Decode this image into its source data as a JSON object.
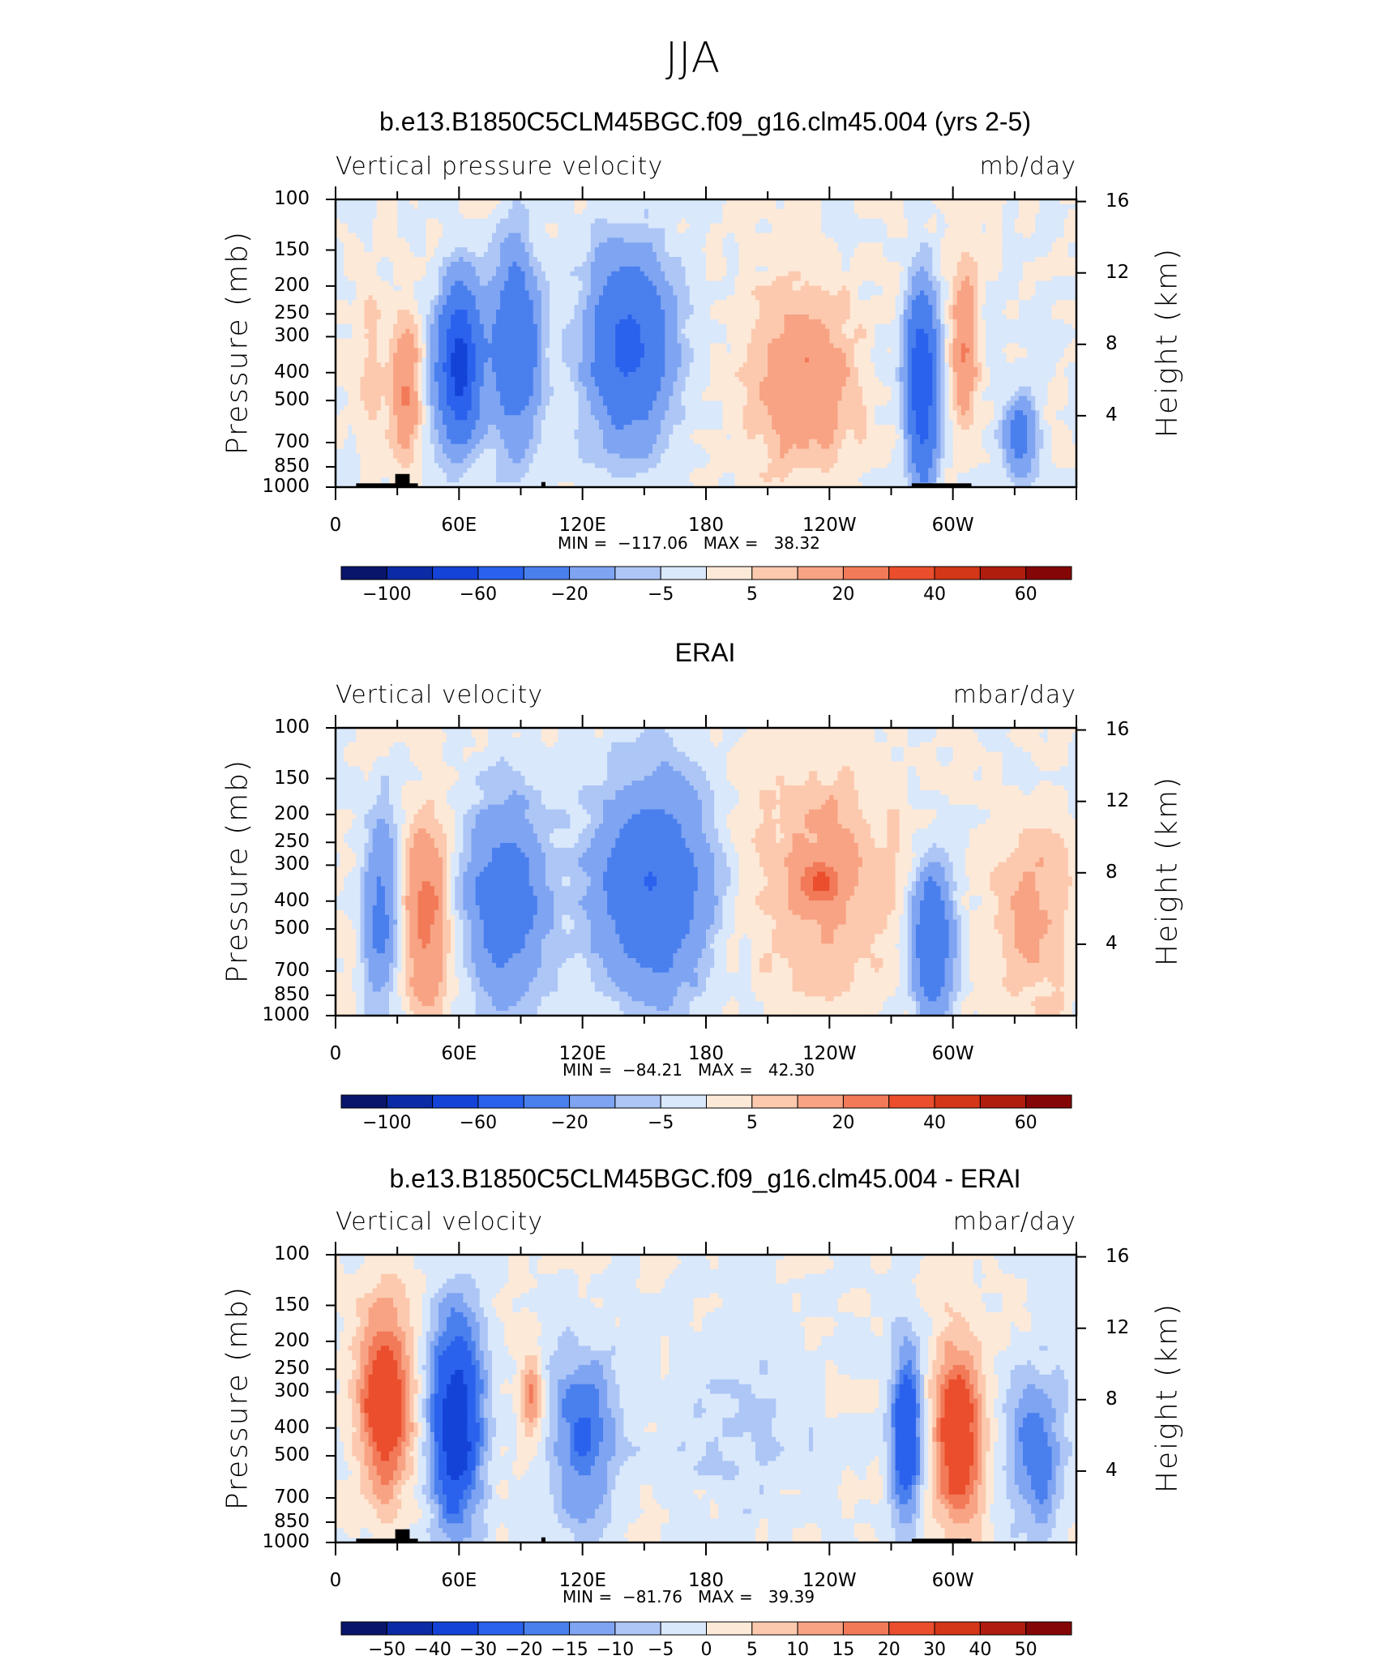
{
  "figure": {
    "title": "JJA"
  },
  "y_ticks": [
    "100",
    "150",
    "200",
    "250",
    "300",
    "400",
    "500",
    "700",
    "850",
    "1000"
  ],
  "y_tick_values": [
    100,
    150,
    200,
    250,
    300,
    400,
    500,
    700,
    850,
    1000
  ],
  "height_ticks": [
    "16",
    "12",
    "8",
    "4"
  ],
  "height_tick_values": [
    16,
    12,
    8,
    4
  ],
  "x_ticks": [
    "0",
    "60E",
    "120E",
    "180",
    "120W",
    "60W"
  ],
  "x_tick_values": [
    0,
    60,
    120,
    180,
    240,
    300
  ],
  "y_axis_label": "Pressure (mb)",
  "y2_axis_label": "Height (km)",
  "colors": {
    "abs_levels": [
      "#08156b",
      "#0a2aa6",
      "#1443d8",
      "#2a62ee",
      "#4a7fee",
      "#7ea4f2",
      "#adc6f6",
      "#d9e8fb",
      "#fde9d8",
      "#fcc9ae",
      "#f8a384",
      "#f27a58",
      "#ea4e2c",
      "#d43618",
      "#b01d0f",
      "#850606"
    ],
    "diff_levels": [
      "#08156b",
      "#0a2aa6",
      "#1443d8",
      "#2a62ee",
      "#4a7fee",
      "#7ea4f2",
      "#adc6f6",
      "#d9e8fb",
      "#fde9d8",
      "#fcc9ae",
      "#f8a384",
      "#f27a58",
      "#ea4e2c",
      "#d43618",
      "#b01d0f",
      "#850606"
    ],
    "land": "#000000"
  },
  "panels": [
    {
      "title": "b.e13.B1850C5CLM45BGC.f09_g16.clm45.004 (yrs 2-5)",
      "variable": "Vertical pressure velocity",
      "units": "mb/day",
      "min_max": "MIN =  −117.06   MAX =   38.32",
      "colorbar_labels": [
        "−100",
        "−60",
        "−20",
        "−5",
        "5",
        "20",
        "40",
        "60"
      ],
      "colorbar_label_boxes": [
        1,
        3,
        5,
        7,
        9,
        11,
        13,
        15
      ]
    },
    {
      "title": "ERAI",
      "variable": "Vertical velocity",
      "units": "mbar/day",
      "min_max": "MIN =  −84.21   MAX =   42.30",
      "colorbar_labels": [
        "−100",
        "−60",
        "−20",
        "−5",
        "5",
        "20",
        "40",
        "60"
      ],
      "colorbar_label_boxes": [
        1,
        3,
        5,
        7,
        9,
        11,
        13,
        15
      ]
    },
    {
      "title": "b.e13.B1850C5CLM45BGC.f09_g16.clm45.004 - ERAI",
      "variable": "Vertical velocity",
      "units": "mbar/day",
      "min_max": "MIN =  −81.76   MAX =   39.39",
      "colorbar_labels": [
        "−50",
        "−40",
        "−30",
        "−20",
        "−15",
        "−10",
        "−5",
        "0",
        "5",
        "10",
        "15",
        "20",
        "30",
        "40",
        "50"
      ],
      "colorbar_label_boxes": [
        1,
        2,
        3,
        4,
        5,
        6,
        7,
        8,
        9,
        10,
        11,
        12,
        13,
        14,
        15
      ]
    }
  ],
  "chart_data": [
    {
      "type": "heatmap",
      "title": "b.e13.B1850C5CLM45BGC.f09_g16.clm45.004 (yrs 2-5)",
      "subtitle": "Vertical pressure velocity",
      "units": "mb/day",
      "xlabel": "",
      "ylabel": "Pressure (mb)",
      "y2label": "Height (km)",
      "x_range": [
        0,
        360
      ],
      "y_range": [
        1000,
        100
      ],
      "y_scale": "log",
      "min": -117.06,
      "max": 38.32,
      "levels": [
        -100,
        -80,
        -60,
        -40,
        -20,
        -10,
        -5,
        0,
        5,
        10,
        20,
        30,
        40,
        50,
        60
      ],
      "features": [
        {
          "lon": [
            12,
            22
          ],
          "p": [
            200,
            850
          ],
          "value": 8
        },
        {
          "lon": [
            28,
            40
          ],
          "p": [
            250,
            850
          ],
          "value": 22
        },
        {
          "lon": [
            50,
            70
          ],
          "p": [
            200,
            700
          ],
          "value": -70
        },
        {
          "lon": [
            75,
            100
          ],
          "p": [
            150,
            700
          ],
          "value": -40
        },
        {
          "lon": [
            120,
            165
          ],
          "p": [
            150,
            700
          ],
          "value": -45
        },
        {
          "lon": [
            200,
            255
          ],
          "p": [
            200,
            900
          ],
          "value": 20
        },
        {
          "lon": [
            278,
            292
          ],
          "p": [
            200,
            950
          ],
          "value": -60
        },
        {
          "lon": [
            300,
            312
          ],
          "p": [
            150,
            600
          ],
          "value": 20
        },
        {
          "lon": [
            325,
            340
          ],
          "p": [
            500,
            900
          ],
          "value": -30
        }
      ]
    },
    {
      "type": "heatmap",
      "title": "ERAI",
      "subtitle": "Vertical velocity",
      "units": "mbar/day",
      "xlabel": "",
      "ylabel": "Pressure (mb)",
      "y2label": "Height (km)",
      "x_range": [
        0,
        360
      ],
      "y_range": [
        1000,
        100
      ],
      "y_scale": "log",
      "min": -84.21,
      "max": 42.3,
      "levels": [
        -100,
        -80,
        -60,
        -40,
        -20,
        -10,
        -5,
        0,
        5,
        10,
        20,
        30,
        40,
        50,
        60
      ],
      "features": [
        {
          "lon": [
            14,
            30
          ],
          "p": [
            200,
            900
          ],
          "value": -25
        },
        {
          "lon": [
            33,
            55
          ],
          "p": [
            200,
            950
          ],
          "value": 25
        },
        {
          "lon": [
            60,
            105
          ],
          "p": [
            170,
            900
          ],
          "value": -30
        },
        {
          "lon": [
            122,
            185
          ],
          "p": [
            150,
            850
          ],
          "value": -40
        },
        {
          "lon": [
            195,
            280
          ],
          "p": [
            120,
            1000
          ],
          "value": 12
        },
        {
          "lon": [
            225,
            245
          ],
          "p": [
            300,
            400
          ],
          "value": 22
        },
        {
          "lon": [
            280,
            300
          ],
          "p": [
            300,
            1000
          ],
          "value": -40
        },
        {
          "lon": [
            318,
            360
          ],
          "p": [
            200,
            1000
          ],
          "value": 12
        }
      ]
    },
    {
      "type": "heatmap",
      "title": "b.e13.B1850C5CLM45BGC.f09_g16.clm45.004 - ERAI",
      "subtitle": "Vertical velocity",
      "units": "mbar/day",
      "xlabel": "",
      "ylabel": "Pressure (mb)",
      "y2label": "Height (km)",
      "x_range": [
        0,
        360
      ],
      "y_range": [
        1000,
        100
      ],
      "y_scale": "log",
      "min": -81.76,
      "max": 39.39,
      "levels": [
        -50,
        -40,
        -30,
        -20,
        -15,
        -10,
        -5,
        0,
        5,
        10,
        15,
        20,
        30,
        40,
        50
      ],
      "features": [
        {
          "lon": [
            10,
            38
          ],
          "p": [
            150,
            700
          ],
          "value": 30
        },
        {
          "lon": [
            45,
            72
          ],
          "p": [
            150,
            950
          ],
          "value": -40
        },
        {
          "lon": [
            90,
            100
          ],
          "p": [
            200,
            500
          ],
          "value": 15
        },
        {
          "lon": [
            100,
            140
          ],
          "p": [
            200,
            950
          ],
          "value": -20
        },
        {
          "lon": [
            150,
            250
          ],
          "p": [
            150,
            950
          ],
          "value": -5
        },
        {
          "lon": [
            270,
            285
          ],
          "p": [
            200,
            900
          ],
          "value": -30
        },
        {
          "lon": [
            290,
            315
          ],
          "p": [
            200,
            900
          ],
          "value": 30
        },
        {
          "lon": [
            325,
            355
          ],
          "p": [
            250,
            950
          ],
          "value": -20
        }
      ]
    }
  ]
}
